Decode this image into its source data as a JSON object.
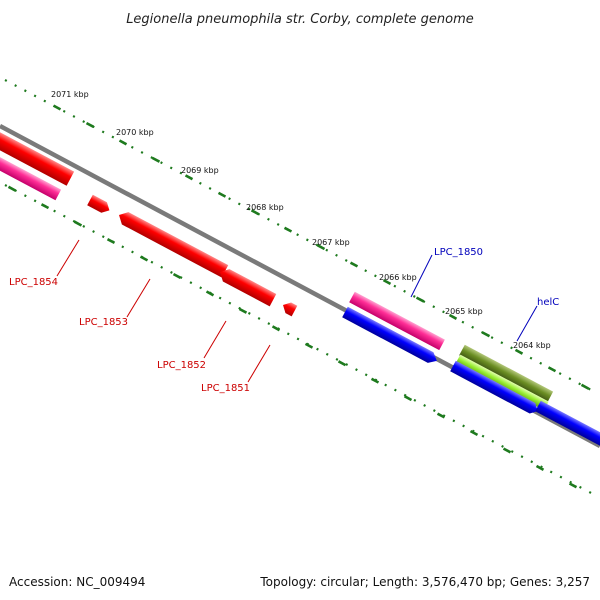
{
  "title": "Legionella pneumophila str. Corby, complete genome",
  "footer": {
    "accession": "Accession: NC_009494",
    "summary": "Topology: circular; Length: 3,576,470 bp; Genes: 3,257"
  },
  "ticks": [
    {
      "label": "2071 kbp",
      "kbp": 2071
    },
    {
      "label": "2070 kbp",
      "kbp": 2070
    },
    {
      "label": "2069 kbp",
      "kbp": 2069
    },
    {
      "label": "2068 kbp",
      "kbp": 2068
    },
    {
      "label": "2067 kbp",
      "kbp": 2067
    },
    {
      "label": "2066 kbp",
      "kbp": 2066
    },
    {
      "label": "2065 kbp",
      "kbp": 2065
    },
    {
      "label": "2064 kbp",
      "kbp": 2064
    }
  ],
  "gene_labels": [
    {
      "text": "LPC_1854",
      "color": "#cc0000"
    },
    {
      "text": "LPC_1853",
      "color": "#cc0000"
    },
    {
      "text": "LPC_1852",
      "color": "#cc0000"
    },
    {
      "text": "LPC_1851",
      "color": "#cc0000"
    },
    {
      "text": "LPC_1850",
      "color": "#0000bb"
    },
    {
      "text": "helC",
      "color": "#0000bb"
    }
  ],
  "colors": {
    "backbone": "#7a7a7a",
    "ticks": "#1e7a1e",
    "red_gene": "#ff0000",
    "magenta_gene": "#ff3399",
    "blue_gene": "#0000ff",
    "olive_gene": "#6b8e23",
    "lime_gene": "#99ee33"
  }
}
